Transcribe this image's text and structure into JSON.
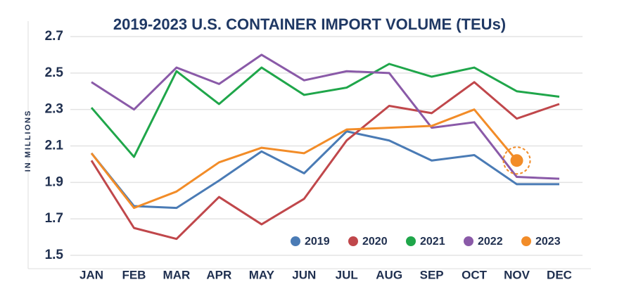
{
  "chart_data": {
    "type": "line",
    "title": "2019-2023 U.S. CONTAINER IMPORT VOLUME (TEUs)",
    "y_label": "IN MILLIONS",
    "categories": [
      "JAN",
      "FEB",
      "MAR",
      "APR",
      "MAY",
      "JUN",
      "JUL",
      "AUG",
      "SEP",
      "OCT",
      "NOV",
      "DEC"
    ],
    "series": [
      {
        "name": "2019",
        "color": "#4a7bb5",
        "values": [
          2.06,
          1.77,
          1.76,
          1.91,
          2.07,
          1.95,
          2.18,
          2.13,
          2.02,
          2.05,
          1.89,
          1.89
        ]
      },
      {
        "name": "2020",
        "color": "#c0474b",
        "values": [
          2.02,
          1.65,
          1.59,
          1.82,
          1.67,
          1.81,
          2.13,
          2.32,
          2.28,
          2.45,
          2.25,
          2.33
        ]
      },
      {
        "name": "2021",
        "color": "#1fa64a",
        "values": [
          2.31,
          2.04,
          2.51,
          2.33,
          2.53,
          2.38,
          2.42,
          2.55,
          2.48,
          2.53,
          2.4,
          2.37
        ]
      },
      {
        "name": "2022",
        "color": "#8a5aa8",
        "values": [
          2.45,
          2.3,
          2.53,
          2.44,
          2.6,
          2.46,
          2.51,
          2.5,
          2.2,
          2.23,
          1.93,
          1.92
        ]
      },
      {
        "name": "2023",
        "color": "#f28c28",
        "values": [
          2.06,
          1.76,
          1.85,
          2.01,
          2.09,
          2.06,
          2.19,
          2.2,
          2.21,
          2.3,
          2.02,
          null
        ]
      }
    ],
    "ylim": [
      1.5,
      2.7
    ],
    "yticks": [
      1.5,
      1.7,
      1.9,
      2.1,
      2.3,
      2.5,
      2.7
    ],
    "grid": true,
    "legend": "lower right"
  }
}
